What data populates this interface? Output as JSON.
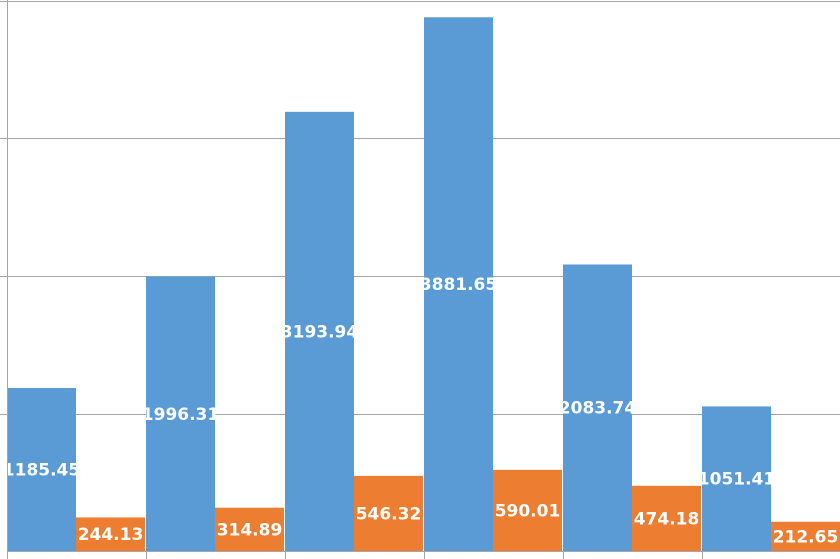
{
  "chart_data": {
    "type": "bar",
    "categories": [
      "",
      "",
      "",
      "",
      "",
      ""
    ],
    "series": [
      {
        "values": [
          1185.45,
          1996.31,
          3193.94,
          3881.65,
          2083.74,
          1051.41
        ],
        "color": "#5B9BD5"
      },
      {
        "values": [
          244.13,
          314.89,
          546.32,
          590.01,
          474.18,
          212.65
        ],
        "color": "#ED7D31"
      }
    ],
    "ylim": [
      0,
      4000
    ],
    "grid": true,
    "legend": "none",
    "data_labels": true,
    "gridline_color": "#A6A6A6",
    "axis_color": "#A6A6A6"
  }
}
